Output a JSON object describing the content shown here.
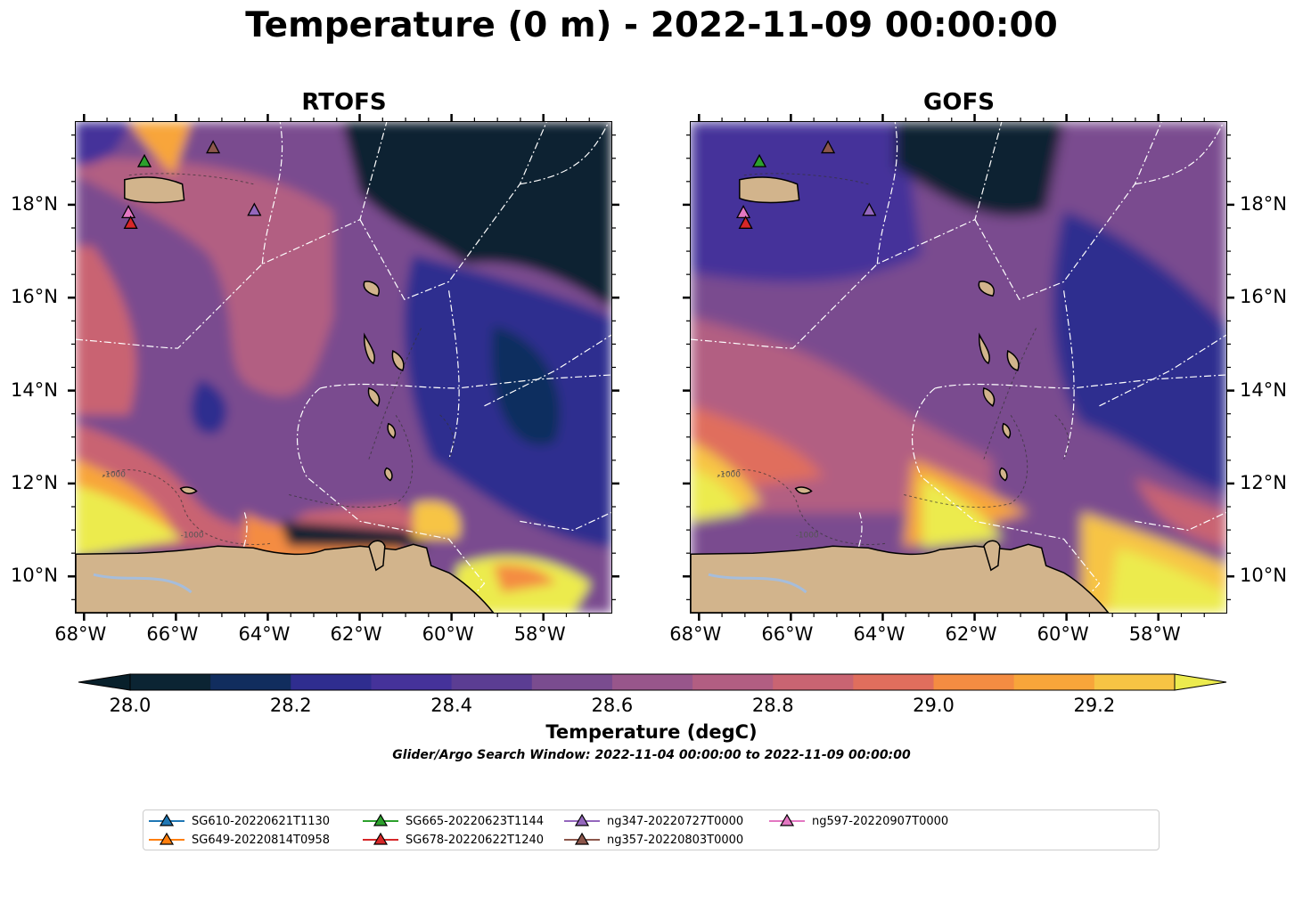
{
  "figure": {
    "title": "Temperature (0 m) - 2022-11-09 00:00:00"
  },
  "panels": [
    {
      "title": "RTOFS"
    },
    {
      "title": "GOFS"
    }
  ],
  "axes": {
    "lon_ticks": [
      "68°W",
      "66°W",
      "64°W",
      "62°W",
      "60°W",
      "58°W"
    ],
    "lat_ticks": [
      "18°N",
      "16°N",
      "14°N",
      "12°N",
      "10°N"
    ]
  },
  "colorbar": {
    "label": "Temperature (degC)",
    "min": 28.0,
    "max": 29.3,
    "step": 0.1,
    "tick_labels": [
      "28.0",
      "28.2",
      "28.4",
      "28.6",
      "28.8",
      "29.0",
      "29.2"
    ],
    "colors": [
      "#0b2433",
      "#112d5e",
      "#2f2d8f",
      "#45329a",
      "#5b3d93",
      "#7a4c8f",
      "#98568b",
      "#b25e82",
      "#c96472",
      "#e06e5d",
      "#f48c42",
      "#f8a53a",
      "#f7c444",
      "#eceb4e"
    ],
    "under_color": "#08202b",
    "over_color": "#eceb4e"
  },
  "search_window": "Glider/Argo Search Window: 2022-11-04 00:00:00 to 2022-11-09 00:00:00",
  "contour_label": "-1000",
  "legend": [
    {
      "label": "SG610-20220621T1130",
      "color": "#1f77b4"
    },
    {
      "label": "SG649-20220814T0958",
      "color": "#ff7f0e"
    },
    {
      "label": "SG665-20220623T1144",
      "color": "#2ca02c"
    },
    {
      "label": "SG678-20220622T1240",
      "color": "#d62728"
    },
    {
      "label": "ng347-20220727T0000",
      "color": "#9467bd"
    },
    {
      "label": "ng357-20220803T0000",
      "color": "#8c564b"
    },
    {
      "label": "ng597-20220907T0000",
      "color": "#e377c2"
    }
  ],
  "markers": [
    {
      "label": "SG665-20220623T1144",
      "lon": -66.7,
      "lat": 18.95
    },
    {
      "label": "ng357-20220803T0000",
      "lon": -65.2,
      "lat": 19.25
    },
    {
      "label": "ng347-20220727T0000",
      "lon": -64.3,
      "lat": 17.9
    },
    {
      "label": "ng597-20220907T0000",
      "lon": -67.05,
      "lat": 17.85
    },
    {
      "label": "SG678-20220622T1240",
      "lon": -67.0,
      "lat": 17.62
    }
  ],
  "colors": {
    "land": "#d2b48c",
    "lake": "#a6bddb",
    "boundary": "#ffffff"
  }
}
